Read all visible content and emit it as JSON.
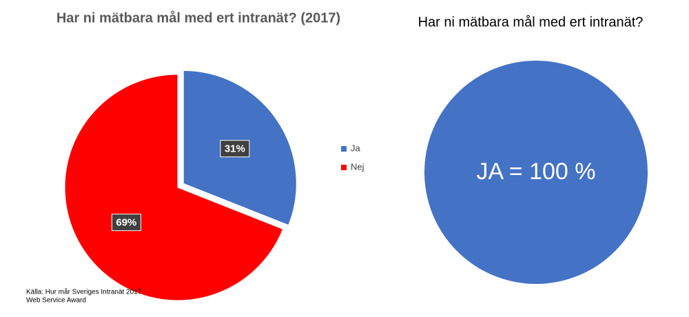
{
  "chart_data": [
    {
      "type": "pie",
      "title": "Har ni mätbara mål med ert intranät? (2017)",
      "categories": [
        "Ja",
        "Nej"
      ],
      "values": [
        31,
        69
      ],
      "value_labels": [
        "31%",
        "69%"
      ],
      "colors": [
        "#4472c4",
        "#ff0000"
      ],
      "legend": "right",
      "source": [
        "Källa: Hur mår Sveriges Intranät 2017",
        "Web Service Award"
      ]
    },
    {
      "type": "pie",
      "title": "Har ni mätbara mål med ert intranät?",
      "categories": [
        null
      ],
      "values": [
        100
      ],
      "value_labels": [
        "JA = 100 %"
      ],
      "colors": [
        "#4472c4"
      ]
    }
  ]
}
